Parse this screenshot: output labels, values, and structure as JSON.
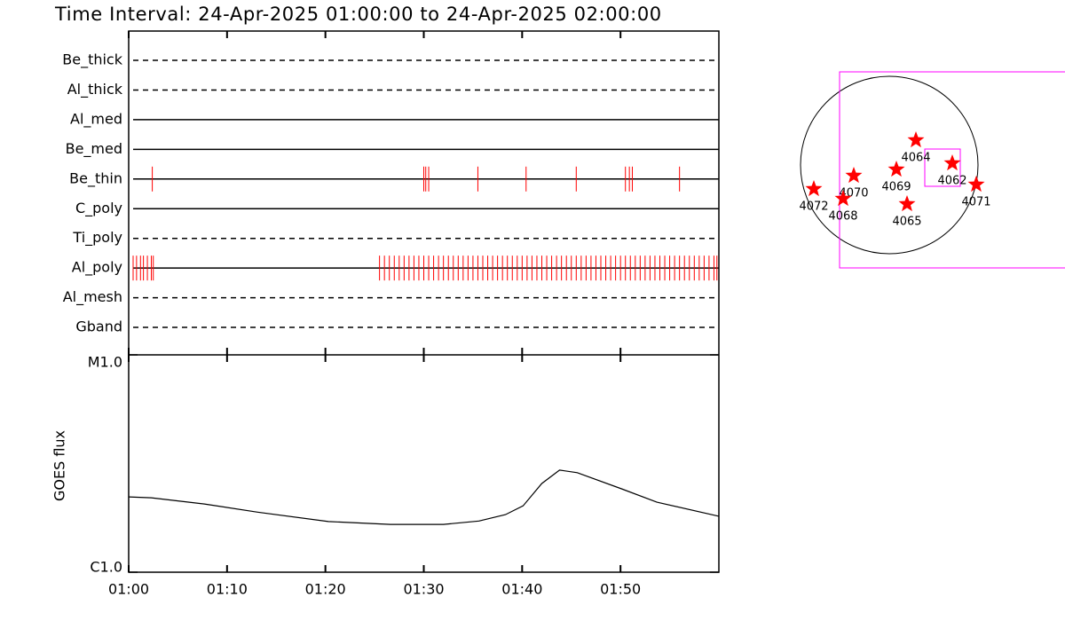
{
  "chart_data": [
    {
      "type": "event",
      "title": "Time Interval: 24-Apr-2025 01:00:00 to 24-Apr-2025 02:00:00",
      "xlim": [
        0,
        60
      ],
      "color": "#ff0000",
      "rows": [
        {
          "name": "Be_thick",
          "style": "dashed",
          "events": []
        },
        {
          "name": "Al_thick",
          "style": "dashed",
          "events": []
        },
        {
          "name": "Al_med",
          "style": "solid",
          "events": []
        },
        {
          "name": "Be_med",
          "style": "solid",
          "events": []
        },
        {
          "name": "Be_thin",
          "style": "solid",
          "events": [
            2.4,
            30.0,
            30.2,
            30.5,
            35.5,
            40.4,
            45.5,
            50.5,
            50.9,
            51.2,
            56.0
          ]
        },
        {
          "name": "C_poly",
          "style": "solid",
          "events": []
        },
        {
          "name": "Ti_poly",
          "style": "dashed",
          "events": []
        },
        {
          "name": "Al_poly",
          "style": "solid",
          "events": [
            0.45,
            0.8,
            1.2,
            1.5,
            1.9,
            2.3,
            2.5,
            25.5,
            26.0,
            26.5,
            27.0,
            27.5,
            28.0,
            28.5,
            29.0,
            29.5,
            30.0,
            30.5,
            31.0,
            31.5,
            32.0,
            32.5,
            33.0,
            33.5,
            34.0,
            34.5,
            35.0,
            35.5,
            36.0,
            36.5,
            37.0,
            37.5,
            38.0,
            38.5,
            39.0,
            39.5,
            40.0,
            40.5,
            41.0,
            41.5,
            42.0,
            42.5,
            43.0,
            43.5,
            44.0,
            44.5,
            45.0,
            45.5,
            46.0,
            46.5,
            47.0,
            47.5,
            48.0,
            48.5,
            49.0,
            49.5,
            50.0,
            50.5,
            51.0,
            51.5,
            52.0,
            52.5,
            53.0,
            53.5,
            54.0,
            54.5,
            55.0,
            55.5,
            56.0,
            56.5,
            57.0,
            57.5,
            58.0,
            58.5,
            59.0,
            59.5,
            59.8
          ]
        },
        {
          "name": "Al_mesh",
          "style": "dashed",
          "events": []
        },
        {
          "name": "Gband",
          "style": "dashed",
          "events": []
        }
      ]
    },
    {
      "type": "line",
      "ylabel": "GOES flux",
      "log_scale": true,
      "color": "#000000",
      "x": [
        0,
        2.3,
        7.7,
        13.1,
        20.3,
        26.6,
        32.0,
        35.6,
        38.3,
        40.1,
        42.0,
        43.8,
        45.6,
        50.1,
        53.7,
        60
      ],
      "values": [
        2.22e-06,
        2.2e-06,
        2.06e-06,
        1.89e-06,
        1.71e-06,
        1.66e-06,
        1.66e-06,
        1.72e-06,
        1.84e-06,
        2.02e-06,
        2.56e-06,
        2.95e-06,
        2.87e-06,
        2.42e-06,
        2.1e-06,
        1.81e-06
      ],
      "xlim": [
        0,
        60
      ],
      "xticks": [
        {
          "value": 0,
          "label": "01:00"
        },
        {
          "value": 10,
          "label": "01:10"
        },
        {
          "value": 20,
          "label": "01:20"
        },
        {
          "value": 30,
          "label": "01:30"
        },
        {
          "value": 40,
          "label": "01:40"
        },
        {
          "value": 50,
          "label": "01:50"
        }
      ],
      "ylim": [
        1e-06,
        1e-05
      ],
      "yticks": [
        {
          "value": 1e-06,
          "label": "C1.0"
        },
        {
          "value": 1e-05,
          "label": "M1.0"
        }
      ]
    }
  ],
  "disk": {
    "regions": [
      "4064",
      "4062",
      "4069",
      "4070",
      "4072",
      "4068",
      "4065",
      "4071"
    ]
  }
}
